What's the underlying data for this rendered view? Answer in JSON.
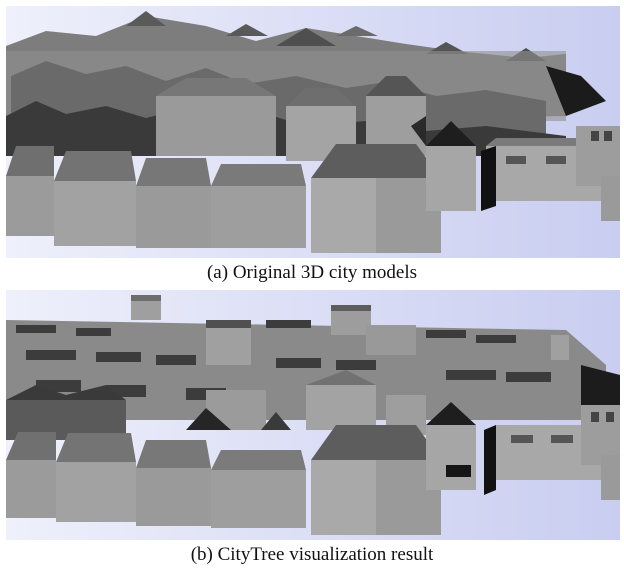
{
  "figure": {
    "panels": [
      {
        "id": "a",
        "caption": "(a) Original 3D city models"
      },
      {
        "id": "b",
        "caption": "(b) CityTree visualization result"
      }
    ]
  }
}
